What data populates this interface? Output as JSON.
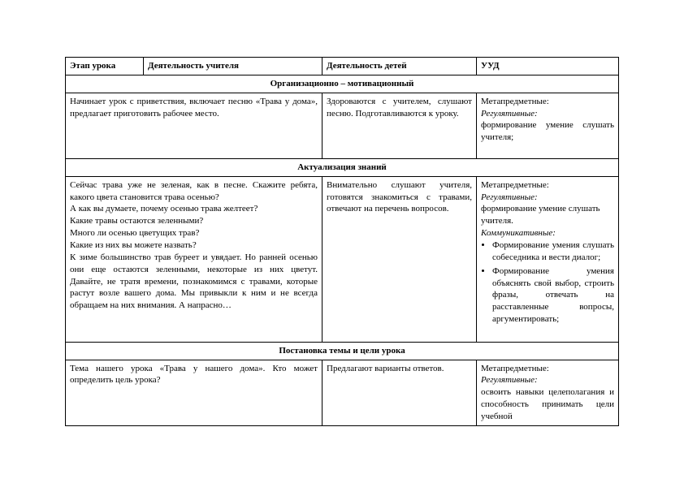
{
  "headers": {
    "stage": "Этап урока",
    "teacher": "Деятельность учителя",
    "children": "Деятельность детей",
    "uud": "УУД"
  },
  "sections": {
    "s1": "Организационно – мотивационный",
    "s2": "Актуализация знаний",
    "s3": "Постановка темы и цели урока"
  },
  "row1": {
    "teacher": "Начинает урок с приветствия, включает песню «Трава у дома», предлагает приготовить рабочее место.",
    "children": "Здороваются с учителем, слушают песню. Подготавливаются к уроку.",
    "uud_meta": "Метапредметные:",
    "uud_reg": "Регулятивные:",
    "uud_reg_text": "формирование умение слушать учителя;"
  },
  "row2": {
    "t_p1": "Сейчас трава уже не зеленая, как в песне. Скажите ребята, какого цвета становится трава осенью?",
    "t_p2": "А как вы думаете, почему осенью трава желтеет?",
    "t_p3": "Какие травы остаются зеленными?",
    "t_p4": "Много ли осенью цветущих трав?",
    "t_p5": "Какие из них вы можете назвать?",
    "t_p6": "К зиме большинство трав буреет и увядает. Но ранней осенью они еще остаются зеленными, некоторые из них цветут. Давайте, не тратя времени, познакомимся с травами, которые растут возле вашего дома. Мы привыкли к ним и не всегда обращаем на них внимания. А напрасно…",
    "children": "Внимательно слушают учителя, готовятся знакомиться с травами, отвечают на перечень вопросов.",
    "uud_meta": "Метапредметные:",
    "uud_reg": "Регулятивные:",
    "uud_reg_text": "формирование умение слушать учителя.",
    "uud_comm": "Коммуникативные:",
    "uud_b1": "Формирование умения слушать собеседника и вести диалог;",
    "uud_b2": "Формирование умения объяснять свой выбор, строить фразы, отвечать на расставленные вопросы, аргументировать;"
  },
  "row3": {
    "teacher": "Тема нашего урока «Трава у нашего дома». Кто может определить цель урока?",
    "children": "Предлагают варианты ответов.",
    "uud_meta": "Метапредметные:",
    "uud_reg": "Регулятивные:",
    "uud_reg_text": "освоить навыки целеполагания и способность принимать цели учебной"
  }
}
